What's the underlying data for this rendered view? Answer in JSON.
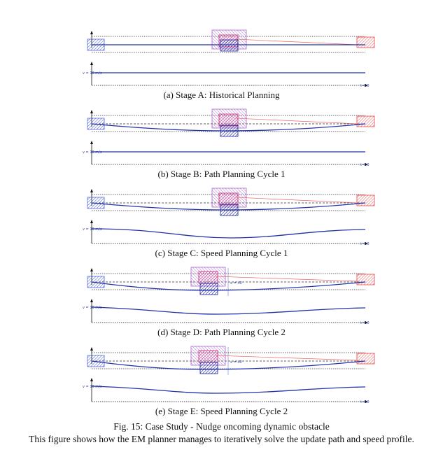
{
  "subfigures": [
    {
      "caption": "(a) Stage A: Historical Planning",
      "labels": {
        "speed": "v = 10 m/s",
        "axis_end": "t=10",
        "marker": ""
      }
    },
    {
      "caption": "(b) Stage B: Path Planning Cycle 1",
      "labels": {
        "speed": "v = 10 m/s",
        "axis_end": "t=10",
        "marker": ""
      }
    },
    {
      "caption": "(c) Stage C: Speed Planning Cycle 1",
      "labels": {
        "speed": "v = 10 m/s",
        "axis_end": "t=10",
        "marker": ""
      }
    },
    {
      "caption": "(d) Stage D: Path Planning Cycle 2",
      "labels": {
        "speed": "v = 10 m/s",
        "axis_end": "t=10",
        "marker": "x = 40"
      }
    },
    {
      "caption": "(e) Stage E: Speed Planning Cycle 2",
      "labels": {
        "speed": "v = 10 m/s",
        "axis_end": "t=10",
        "marker": "x = 40"
      }
    }
  ],
  "figure": {
    "caption": "Fig. 15: Case Study - Nudge oncoming dynamic obstacle",
    "description": "This figure shows how the EM planner manages to iteratively solve the update path and speed profile."
  },
  "colors": {
    "path": "#2233aa",
    "ego": "#5566dd",
    "obstacle_pink": "#cc2277",
    "obstacle_purple": "#aa66cc",
    "obstacle_blue": "#2233bb",
    "target": "#ee4444"
  }
}
